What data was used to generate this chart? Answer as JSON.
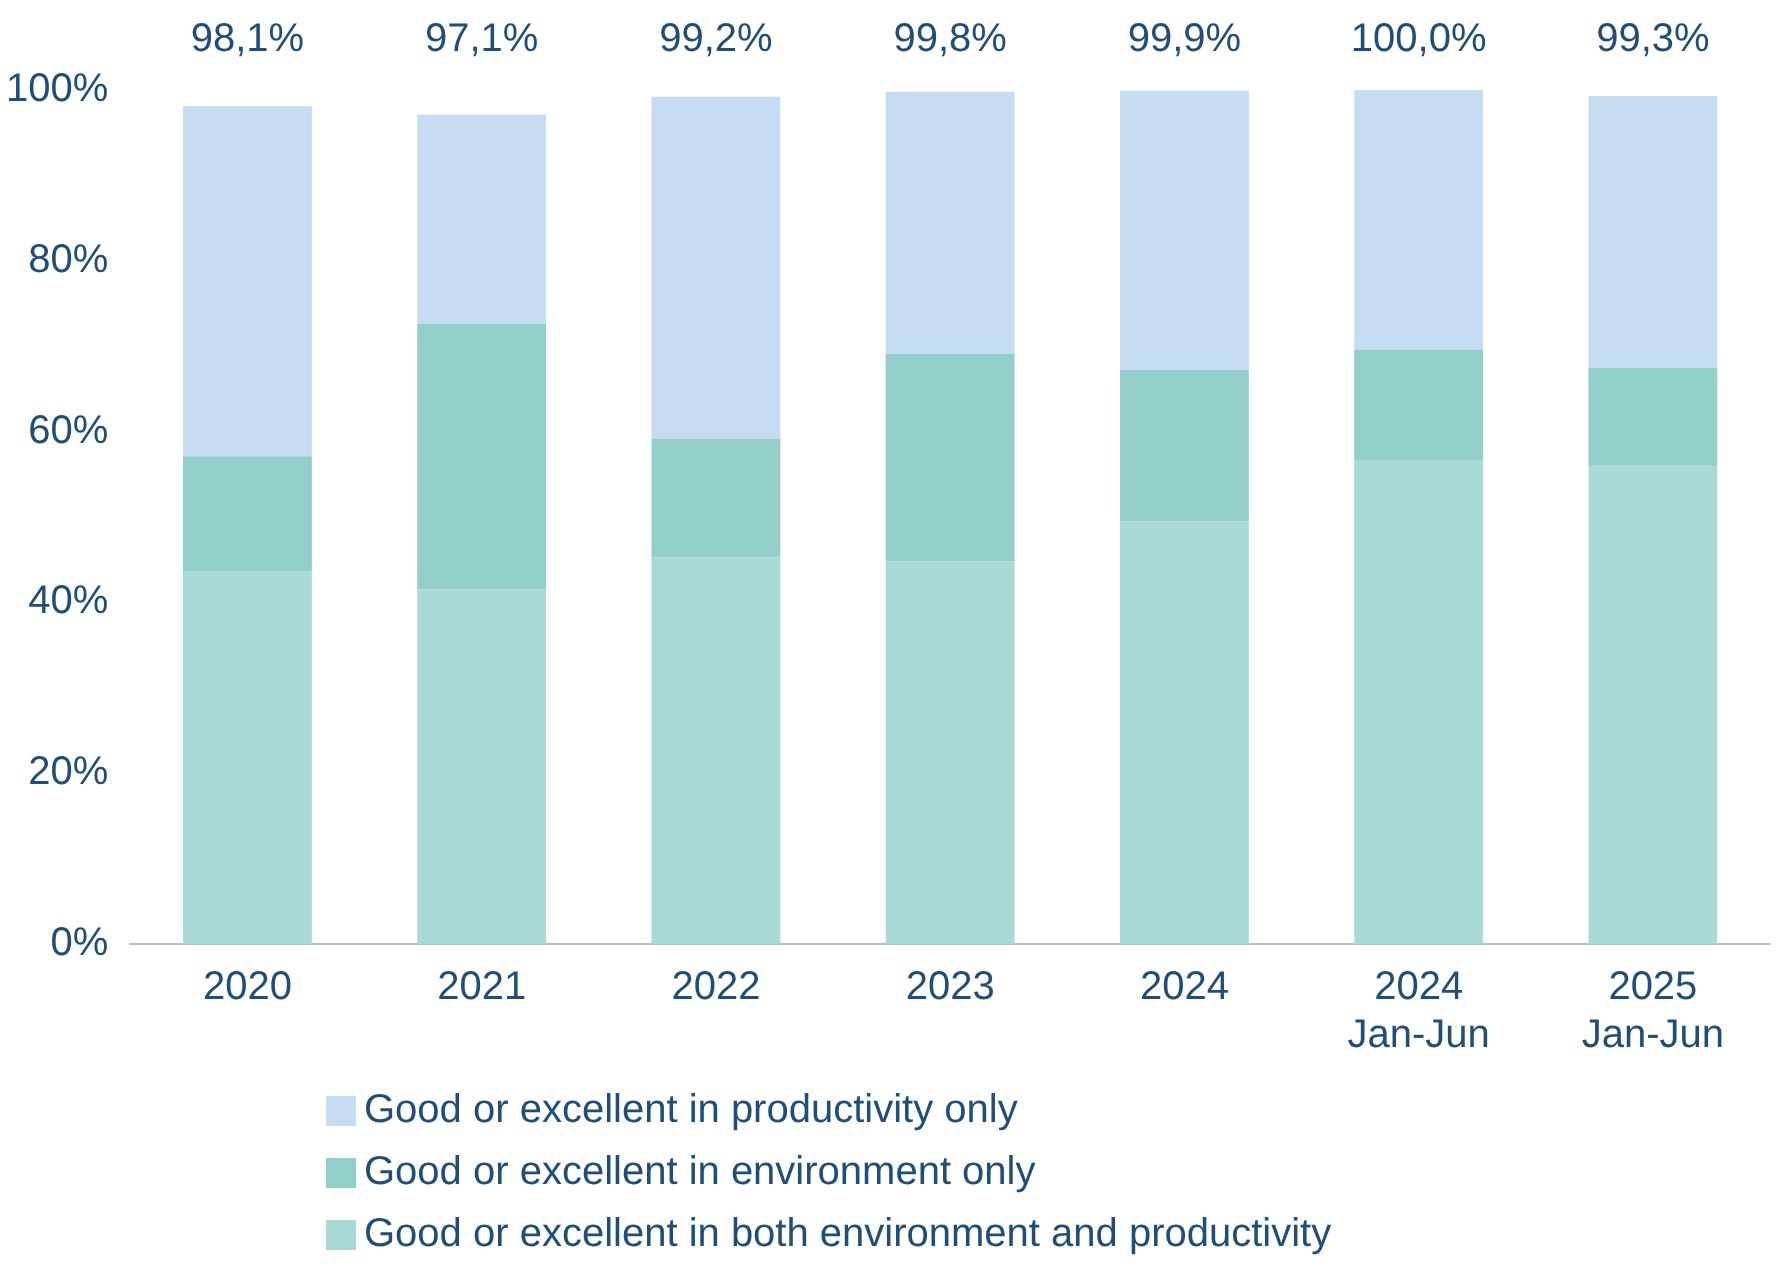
{
  "chart_data": {
    "type": "bar",
    "stacked": true,
    "categories": [
      "2020",
      "2021",
      "2022",
      "2023",
      "2024",
      "2024\nJan-Jun",
      "2025\nJan-Jun"
    ],
    "series": [
      {
        "name": "Good or excellent in both environment and productivity",
        "color": "#a9dad8",
        "values": [
          43.6,
          41.5,
          45.3,
          44.8,
          49.5,
          56.6,
          56.1
        ]
      },
      {
        "name": "Good or excellent in environment only",
        "color": "#92cfcb",
        "values": [
          13.5,
          31.1,
          13.9,
          24.3,
          17.7,
          13.0,
          11.4
        ]
      },
      {
        "name": "Good or excellent in productivity only",
        "color": "#c5dcf2",
        "values": [
          41.0,
          24.5,
          40.0,
          30.7,
          32.7,
          30.4,
          31.8
        ]
      }
    ],
    "totals": [
      "98,1%",
      "97,1%",
      "99,2%",
      "99,8%",
      "99,9%",
      "100,0%",
      "99,3%"
    ],
    "ylim": [
      0,
      100
    ],
    "yticks": [
      {
        "value": 0,
        "label": "0%"
      },
      {
        "value": 20,
        "label": "20%"
      },
      {
        "value": 40,
        "label": "40%"
      },
      {
        "value": 60,
        "label": "60%"
      },
      {
        "value": 80,
        "label": "80%"
      },
      {
        "value": 100,
        "label": "100%"
      }
    ],
    "grid": false,
    "legend": "bottom"
  }
}
